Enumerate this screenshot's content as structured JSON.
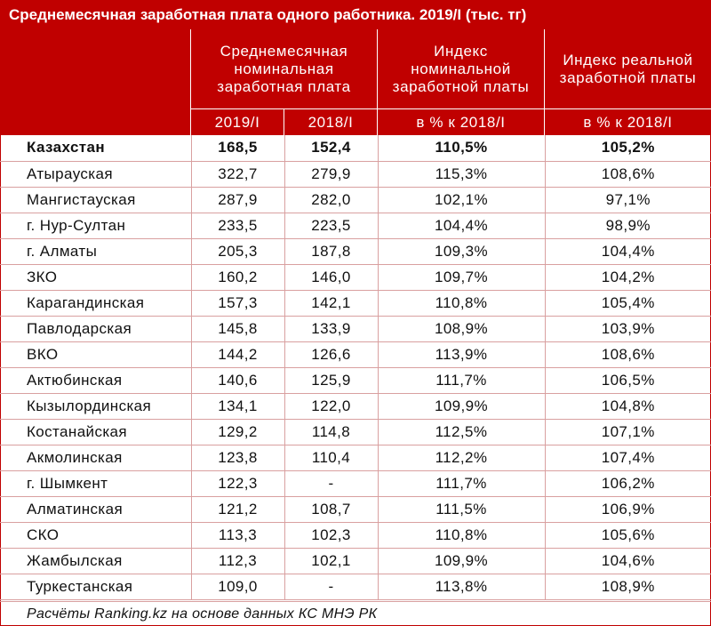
{
  "title": "Среднемесячная заработная плата одного работника. 2019/I (тыс. тг)",
  "headers": {
    "nominal": "Среднемесячная номинальная заработная плата",
    "nominal_index": "Индекс номинальной заработной платы",
    "real_index": "Индекс реальной заработной платы",
    "sub_2019": "2019/I",
    "sub_2018": "2018/I",
    "sub_nominal_pct": "в % к 2018/I",
    "sub_real_pct": "в % к 2018/I"
  },
  "rows": [
    {
      "region": "Казахстан",
      "v2019": "168,5",
      "v2018": "152,4",
      "nominal_idx": "110,5%",
      "real_idx": "105,2%"
    },
    {
      "region": "Атырауская",
      "v2019": "322,7",
      "v2018": "279,9",
      "nominal_idx": "115,3%",
      "real_idx": "108,6%"
    },
    {
      "region": "Мангистауская",
      "v2019": "287,9",
      "v2018": "282,0",
      "nominal_idx": "102,1%",
      "real_idx": "97,1%"
    },
    {
      "region": "г. Нур-Султан",
      "v2019": "233,5",
      "v2018": "223,5",
      "nominal_idx": "104,4%",
      "real_idx": "98,9%"
    },
    {
      "region": "г. Алматы",
      "v2019": "205,3",
      "v2018": "187,8",
      "nominal_idx": "109,3%",
      "real_idx": "104,4%"
    },
    {
      "region": "ЗКО",
      "v2019": "160,2",
      "v2018": "146,0",
      "nominal_idx": "109,7%",
      "real_idx": "104,2%"
    },
    {
      "region": "Карагандинская",
      "v2019": "157,3",
      "v2018": "142,1",
      "nominal_idx": "110,8%",
      "real_idx": "105,4%"
    },
    {
      "region": "Павлодарская",
      "v2019": "145,8",
      "v2018": "133,9",
      "nominal_idx": "108,9%",
      "real_idx": "103,9%"
    },
    {
      "region": "ВКО",
      "v2019": "144,2",
      "v2018": "126,6",
      "nominal_idx": "113,9%",
      "real_idx": "108,6%"
    },
    {
      "region": "Актюбинская",
      "v2019": "140,6",
      "v2018": "125,9",
      "nominal_idx": "111,7%",
      "real_idx": "106,5%"
    },
    {
      "region": "Кызылординская",
      "v2019": "134,1",
      "v2018": "122,0",
      "nominal_idx": "109,9%",
      "real_idx": "104,8%"
    },
    {
      "region": "Костанайская",
      "v2019": "129,2",
      "v2018": "114,8",
      "nominal_idx": "112,5%",
      "real_idx": "107,1%"
    },
    {
      "region": "Акмолинская",
      "v2019": "123,8",
      "v2018": "110,4",
      "nominal_idx": "112,2%",
      "real_idx": "107,4%"
    },
    {
      "region": "г. Шымкент",
      "v2019": "122,3",
      "v2018": "-",
      "nominal_idx": "111,7%",
      "real_idx": "106,2%"
    },
    {
      "region": "Алматинская",
      "v2019": "121,2",
      "v2018": "108,7",
      "nominal_idx": "111,5%",
      "real_idx": "106,9%"
    },
    {
      "region": "СКО",
      "v2019": "113,3",
      "v2018": "102,3",
      "nominal_idx": "110,8%",
      "real_idx": "105,6%"
    },
    {
      "region": "Жамбылская",
      "v2019": "112,3",
      "v2018": "102,1",
      "nominal_idx": "109,9%",
      "real_idx": "104,6%"
    },
    {
      "region": "Туркестанская",
      "v2019": "109,0",
      "v2018": "-",
      "nominal_idx": "113,8%",
      "real_idx": "108,9%"
    }
  ],
  "footer": "Расчёты Ranking.kz на основе данных КС МНЭ РК",
  "colors": {
    "header_bg": "#c00000",
    "grid": "#d9a0a0",
    "header_text": "#ffffff"
  }
}
